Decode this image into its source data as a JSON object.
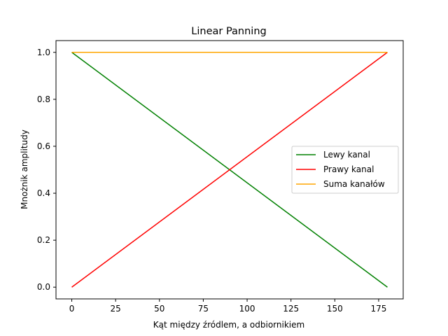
{
  "chart_data": {
    "type": "line",
    "title": "Linear Panning",
    "xlabel": "Kąt między źródlem, a odbiornikiem",
    "ylabel": "Mnożnik amplitudy",
    "xlim": [
      -9,
      189
    ],
    "ylim": [
      -0.05,
      1.05
    ],
    "xticks": [
      0,
      25,
      50,
      75,
      100,
      125,
      150,
      175
    ],
    "yticks": [
      0.0,
      0.2,
      0.4,
      0.6,
      0.8,
      1.0
    ],
    "xtick_labels": [
      "0",
      "25",
      "50",
      "75",
      "100",
      "125",
      "150",
      "175"
    ],
    "ytick_labels": [
      "0.0",
      "0.2",
      "0.4",
      "0.6",
      "0.8",
      "1.0"
    ],
    "grid": false,
    "legend_position": "center-right",
    "series": [
      {
        "name": "Lewy kanal",
        "color": "#008000",
        "x": [
          0,
          180
        ],
        "y": [
          1.0,
          0.0
        ]
      },
      {
        "name": "Prawy kanal",
        "color": "#ff0000",
        "x": [
          0,
          180
        ],
        "y": [
          0.0,
          1.0
        ]
      },
      {
        "name": "Suma kanałów",
        "color": "#ffa500",
        "x": [
          0,
          180
        ],
        "y": [
          1.0,
          1.0
        ]
      }
    ]
  }
}
